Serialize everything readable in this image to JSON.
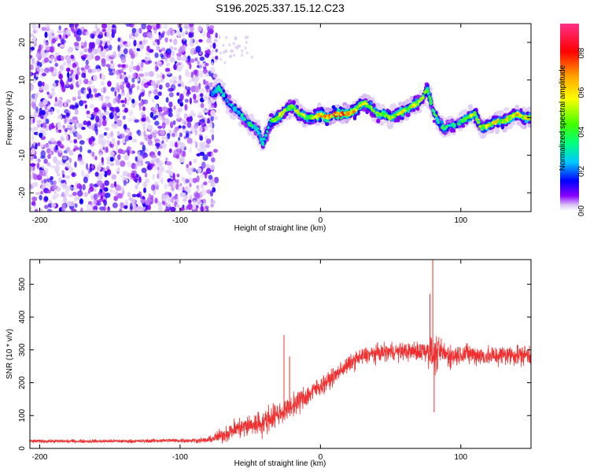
{
  "title": "S196.2025.337.15.12.C23",
  "chart_data": [
    {
      "type": "heatmap",
      "xlabel": "Height of straight line (km)",
      "ylabel": "Frequency (Hz)",
      "xlim": [
        -207,
        150
      ],
      "ylim": [
        -25,
        25
      ],
      "xticks": [
        -200,
        -100,
        0,
        100
      ],
      "yticks": [
        -20,
        -10,
        0,
        10,
        20
      ],
      "xtick_labels": [
        "-200",
        "-100",
        "0",
        "100"
      ],
      "ytick_labels": [
        "-20",
        "-10",
        "0",
        "10",
        "20"
      ],
      "colorbar": {
        "label": "Normalized spectral amplitude",
        "range": [
          0,
          0.95
        ],
        "ticks": [
          0.0,
          0.2,
          0.4,
          0.6,
          0.8
        ],
        "tick_labels": [
          "0.0",
          "0.2",
          "0.4",
          "0.6",
          "0.8"
        ],
        "colors": [
          "#ffffff",
          "#dcc8f5",
          "#8a00ff",
          "#0000ff",
          "#00c8ff",
          "#00ff80",
          "#40ff00",
          "#ffff00",
          "#ffa000",
          "#ff0000",
          "#ff3088"
        ]
      },
      "noise_region": {
        "x_range": [
          -207,
          -78
        ],
        "amplitude_range": [
          0.02,
          0.15
        ]
      },
      "ridge": {
        "x": [
          -78,
          -72,
          -66,
          -60,
          -55,
          -50,
          -45,
          -41,
          -38,
          -35,
          -30,
          -25,
          -20,
          -15,
          -10,
          -5,
          0,
          5,
          10,
          15,
          20,
          25,
          30,
          35,
          40,
          45,
          50,
          55,
          60,
          65,
          70,
          74,
          76,
          78,
          80,
          84,
          88,
          92,
          96,
          100,
          105,
          110,
          115,
          120,
          125,
          130,
          135,
          140,
          145,
          150
        ],
        "freq": [
          6,
          8,
          4,
          2,
          0,
          -2,
          -3,
          -7,
          -4,
          -1,
          0,
          2,
          3,
          1,
          0,
          0,
          1,
          0,
          1,
          1,
          1,
          2,
          4,
          3,
          1,
          1,
          0,
          1,
          2,
          3,
          4,
          6,
          8,
          5,
          2,
          -1,
          -3,
          -2,
          -2,
          -1,
          0,
          1,
          -3,
          -2,
          -1,
          -1,
          0,
          1,
          0,
          0
        ],
        "amplitude": [
          0.3,
          0.35,
          0.3,
          0.3,
          0.35,
          0.4,
          0.35,
          0.3,
          0.35,
          0.45,
          0.6,
          0.55,
          0.6,
          0.6,
          0.55,
          0.5,
          0.75,
          0.8,
          0.85,
          0.8,
          0.75,
          0.7,
          0.65,
          0.55,
          0.5,
          0.5,
          0.55,
          0.6,
          0.65,
          0.7,
          0.55,
          0.5,
          0.45,
          0.45,
          0.4,
          0.45,
          0.5,
          0.4,
          0.4,
          0.45,
          0.5,
          0.55,
          0.5,
          0.6,
          0.65,
          0.65,
          0.6,
          0.65,
          0.65,
          0.6
        ]
      }
    },
    {
      "type": "line",
      "xlabel": "Height of straight line (km)",
      "ylabel": "SNR (10 * v/v)",
      "xlim": [
        -207,
        150
      ],
      "ylim": [
        0,
        575
      ],
      "xticks": [
        -200,
        -100,
        0,
        100
      ],
      "yticks": [
        0,
        100,
        200,
        300,
        400,
        500
      ],
      "xtick_labels": [
        "-200",
        "-100",
        "0",
        "100"
      ],
      "ytick_labels": [
        "0",
        "100",
        "200",
        "300",
        "400",
        "500"
      ],
      "color": "#f03030",
      "series": [
        {
          "name": "SNR",
          "x": [
            -207,
            -190,
            -170,
            -150,
            -130,
            -110,
            -90,
            -80,
            -70,
            -60,
            -50,
            -40,
            -35,
            -30,
            -25,
            -20,
            -15,
            -10,
            -5,
            0,
            5,
            10,
            15,
            20,
            25,
            30,
            35,
            40,
            50,
            60,
            70,
            75,
            80,
            82,
            85,
            90,
            95,
            100,
            110,
            120,
            130,
            140,
            150
          ],
          "values": [
            22,
            22,
            22,
            22,
            22,
            24,
            24,
            25,
            40,
            60,
            70,
            80,
            95,
            105,
            115,
            130,
            145,
            160,
            175,
            190,
            205,
            220,
            240,
            255,
            270,
            280,
            285,
            290,
            295,
            295,
            295,
            300,
            285,
            280,
            295,
            285,
            280,
            290,
            285,
            280,
            285,
            285,
            285
          ],
          "noise": [
            6,
            6,
            6,
            6,
            6,
            7,
            8,
            10,
            25,
            35,
            40,
            45,
            45,
            40,
            35,
            35,
            40,
            40,
            35,
            30,
            30,
            28,
            28,
            28,
            30,
            30,
            30,
            30,
            30,
            30,
            35,
            40,
            60,
            60,
            45,
            40,
            40,
            35,
            35,
            35,
            35,
            35,
            35
          ]
        }
      ],
      "spikes": [
        {
          "x": -26,
          "y": 345
        },
        {
          "x": -22,
          "y": 280
        },
        {
          "x": 80,
          "y": 575
        },
        {
          "x": 78,
          "y": 470
        },
        {
          "x": 81,
          "y": 110
        }
      ]
    }
  ]
}
